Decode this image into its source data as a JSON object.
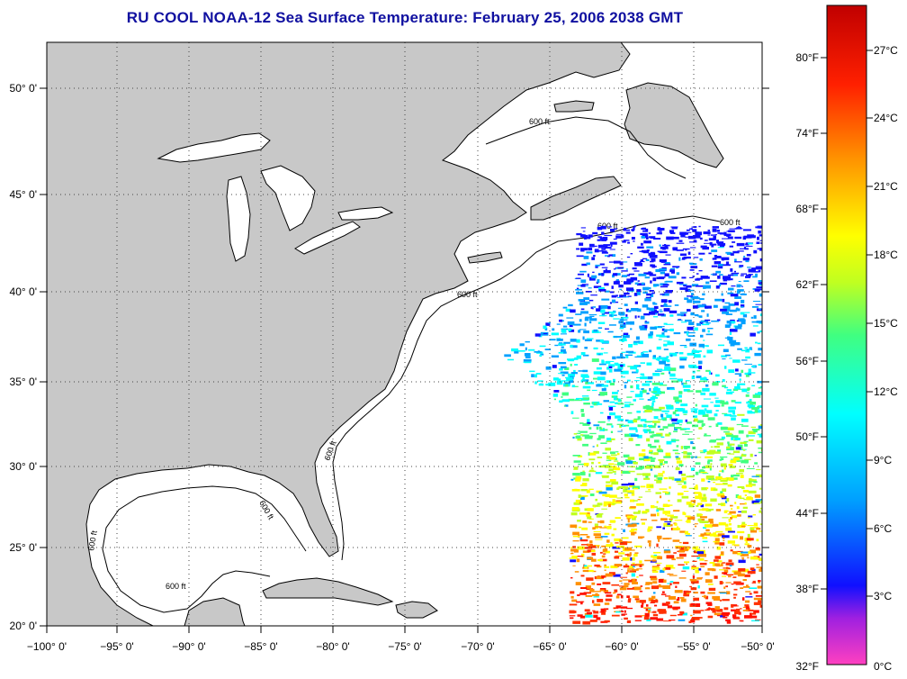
{
  "title": "RU COOL  NOAA-12  Sea Surface Temperature:  February 25, 2006 2038 GMT",
  "map": {
    "projection": "Mercator",
    "lon_range": [
      -100,
      -50
    ],
    "lat_range": [
      20,
      52.5
    ],
    "grid": "dotted",
    "lon_ticks": [
      "−100° 0'",
      "−95° 0'",
      "−90° 0'",
      "−85° 0'",
      "−80° 0'",
      "−75° 0'",
      "−70° 0'",
      "−65° 0'",
      "−60° 0'",
      "−55° 0'",
      "−50° 0'"
    ],
    "lat_ticks": [
      "50° 0'",
      "45° 0'",
      "40° 0'",
      "35° 0'",
      "30° 0'",
      "25° 0'",
      "20° 0'"
    ],
    "land_color": "#c8c8c8",
    "ocean_color": "#ffffff",
    "contour_label": "600 ft"
  },
  "colorbar": {
    "fahrenheit_labels": [
      "80°F",
      "74°F",
      "68°F",
      "62°F",
      "56°F",
      "50°F",
      "44°F",
      "38°F",
      "32°F"
    ],
    "celsius_labels": [
      "27°C",
      "24°C",
      "21°C",
      "18°C",
      "15°C",
      "12°C",
      "9°C",
      "6°C",
      "3°C",
      "0°C"
    ],
    "range_c": [
      0,
      29
    ],
    "colors": [
      "#ff40c0",
      "#a020e0",
      "#1010ff",
      "#00a0ff",
      "#00ffff",
      "#40ff80",
      "#c0ff20",
      "#ffff00",
      "#ff9000",
      "#ff2000",
      "#c00000"
    ]
  }
}
